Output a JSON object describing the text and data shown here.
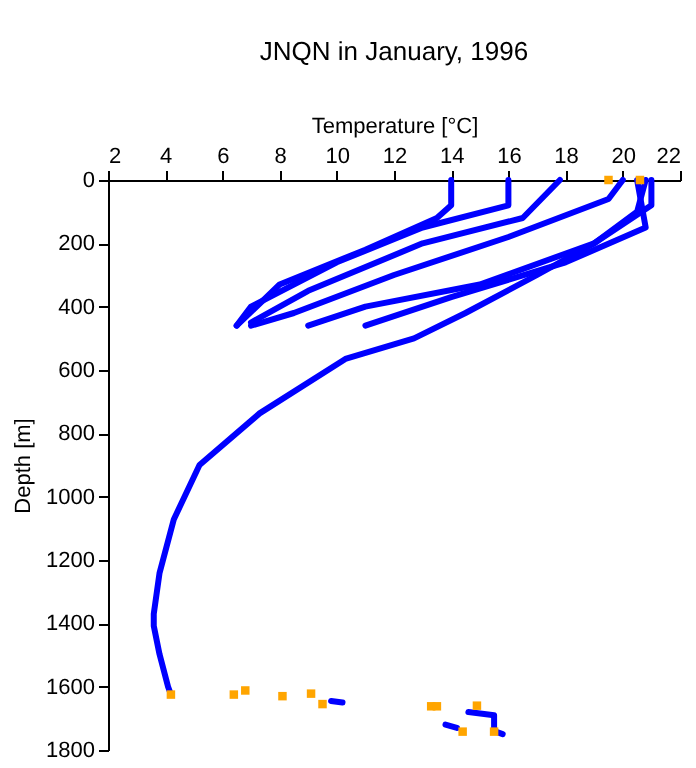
{
  "chart_data": {
    "type": "line",
    "title": "JNQN in January, 1996",
    "xlabel": "Temperature [°C]",
    "ylabel": "Depth [m]",
    "xlim": [
      2,
      22
    ],
    "xticks": [
      2,
      4,
      6,
      8,
      10,
      12,
      14,
      16,
      18,
      20,
      22
    ],
    "ylim": [
      1800,
      0
    ],
    "yticks": [
      0,
      200,
      400,
      600,
      800,
      1000,
      1200,
      1400,
      1600,
      1800
    ],
    "line_style": "solid",
    "series": [
      {
        "color": "#0000ff",
        "x": [
          20.8,
          20.5,
          19,
          17,
          14.5,
          12.7,
          10.3,
          7.3,
          5.2,
          4.3,
          3.8,
          3.6,
          3.6,
          3.8,
          4.1,
          4.2
        ],
        "values": [
          0,
          100,
          200,
          300,
          420,
          500,
          565,
          737,
          900,
          1072,
          1242,
          1370,
          1408,
          1497,
          1600,
          1625
        ]
      },
      {
        "color": "#0000ff",
        "x": [
          14,
          14,
          13.5,
          11,
          8,
          6.5
        ],
        "values": [
          0,
          80,
          120,
          220,
          330,
          460
        ]
      },
      {
        "color": "#0000ff",
        "x": [
          16,
          16,
          13,
          10,
          7,
          6.5
        ],
        "values": [
          0,
          80,
          150,
          260,
          400,
          460
        ]
      },
      {
        "color": "#0000ff",
        "x": [
          17.8,
          16.5,
          13,
          9,
          7
        ],
        "values": [
          0,
          120,
          200,
          350,
          450
        ]
      },
      {
        "color": "#0000ff",
        "x": [
          20,
          19.5,
          16,
          12,
          8.5,
          7
        ],
        "values": [
          0,
          60,
          180,
          300,
          420,
          460
        ]
      },
      {
        "color": "#0000ff",
        "x": [
          21,
          21,
          19,
          15,
          11,
          9
        ],
        "values": [
          0,
          80,
          200,
          330,
          400,
          460
        ]
      },
      {
        "color": "#0000ff",
        "x": [
          20.5,
          20.8,
          18,
          14,
          11
        ],
        "values": [
          0,
          150,
          260,
          370,
          460
        ]
      },
      {
        "color": "#0000ff",
        "x": [
          9.8,
          10.2
        ],
        "values": [
          1645,
          1650
        ]
      },
      {
        "color": "#0000ff",
        "x": [
          14.6,
          15.5,
          15.5,
          15.8
        ],
        "values": [
          1680,
          1690,
          1740,
          1750
        ]
      },
      {
        "color": "#0000ff",
        "x": [
          13.8,
          14.2
        ],
        "values": [
          1720,
          1730
        ]
      },
      {
        "type": "scatter",
        "marker": "square",
        "color": "#ffa500",
        "x": [
          19.5,
          20.6,
          4.2,
          6.4,
          6.8,
          8.1,
          9.1,
          9.5,
          13.3,
          13.5,
          14.9,
          14.4,
          15.5
        ],
        "values": [
          0,
          0,
          1625,
          1625,
          1612,
          1630,
          1622,
          1655,
          1662,
          1662,
          1660,
          1742,
          1742
        ]
      }
    ]
  }
}
